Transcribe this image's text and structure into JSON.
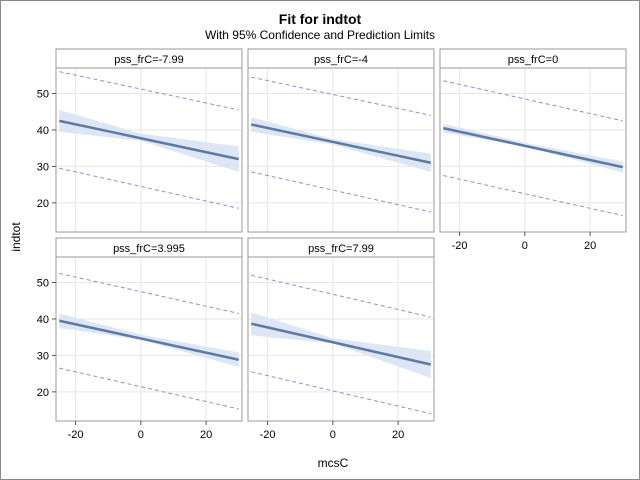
{
  "chart_data": {
    "type": "line",
    "title": "Fit for indtot",
    "subtitle": "With 95% Confidence and Prediction Limits",
    "xlabel": "mcsC",
    "ylabel": "indtot",
    "xlim": [
      -26,
      31
    ],
    "ylim": [
      12,
      57
    ],
    "xticks": [
      -20,
      0,
      20
    ],
    "yticks": [
      20,
      30,
      40,
      50
    ],
    "grid": true,
    "colors": {
      "fit": "#5d7aa3",
      "band": "#dde6f4",
      "prediction": "#8a93d1",
      "border": "#888888",
      "frame": "#999999",
      "grid": "#e6e6e6",
      "strip_bg": "#ffffff"
    },
    "panels": [
      {
        "label": "pss_frC=-7.99",
        "fit": [
          [
            -25,
            42.5
          ],
          [
            30,
            32.0
          ]
        ],
        "ci_low": [
          [
            -25,
            39.5
          ],
          [
            0,
            37.0
          ],
          [
            30,
            28.5
          ]
        ],
        "ci_high": [
          [
            -25,
            45.5
          ],
          [
            0,
            39.0
          ],
          [
            30,
            35.5
          ]
        ],
        "pi_low": [
          [
            -25,
            29.5
          ],
          [
            30,
            18.5
          ]
        ],
        "pi_high": [
          [
            -25,
            56.0
          ],
          [
            30,
            45.5
          ]
        ]
      },
      {
        "label": "pss_frC=-4",
        "fit": [
          [
            -25,
            41.5
          ],
          [
            30,
            31.0
          ]
        ],
        "ci_low": [
          [
            -25,
            39.5
          ],
          [
            0,
            36.0
          ],
          [
            30,
            28.5
          ]
        ],
        "ci_high": [
          [
            -25,
            43.5
          ],
          [
            0,
            37.5
          ],
          [
            30,
            33.5
          ]
        ],
        "pi_low": [
          [
            -25,
            28.5
          ],
          [
            30,
            17.5
          ]
        ],
        "pi_high": [
          [
            -25,
            54.5
          ],
          [
            30,
            44.0
          ]
        ]
      },
      {
        "label": "pss_frC=0",
        "fit": [
          [
            -25,
            40.5
          ],
          [
            30,
            29.8
          ]
        ],
        "ci_low": [
          [
            -25,
            39.3
          ],
          [
            0,
            35.5
          ],
          [
            30,
            28.3
          ]
        ],
        "ci_high": [
          [
            -25,
            41.7
          ],
          [
            0,
            36.5
          ],
          [
            30,
            31.3
          ]
        ],
        "pi_low": [
          [
            -25,
            27.5
          ],
          [
            30,
            16.5
          ]
        ],
        "pi_high": [
          [
            -25,
            53.5
          ],
          [
            30,
            42.5
          ]
        ]
      },
      {
        "label": "pss_frC=3.995",
        "fit": [
          [
            -25,
            39.5
          ],
          [
            30,
            28.8
          ]
        ],
        "ci_low": [
          [
            -25,
            37.5
          ],
          [
            0,
            34.3
          ],
          [
            30,
            26.8
          ]
        ],
        "ci_high": [
          [
            -25,
            41.5
          ],
          [
            0,
            35.7
          ],
          [
            30,
            30.8
          ]
        ],
        "pi_low": [
          [
            -25,
            26.5
          ],
          [
            30,
            15.3
          ]
        ],
        "pi_high": [
          [
            -25,
            52.5
          ],
          [
            30,
            41.5
          ]
        ]
      },
      {
        "label": "pss_frC=7.99",
        "fit": [
          [
            -25,
            38.7
          ],
          [
            30,
            27.5
          ]
        ],
        "ci_low": [
          [
            -25,
            35.5
          ],
          [
            0,
            33.3
          ],
          [
            30,
            23.8
          ]
        ],
        "ci_high": [
          [
            -25,
            41.8
          ],
          [
            0,
            34.7
          ],
          [
            30,
            31.2
          ]
        ],
        "pi_low": [
          [
            -25,
            25.5
          ],
          [
            30,
            14.0
          ]
        ],
        "pi_high": [
          [
            -25,
            52.0
          ],
          [
            30,
            40.5
          ]
        ]
      }
    ]
  }
}
